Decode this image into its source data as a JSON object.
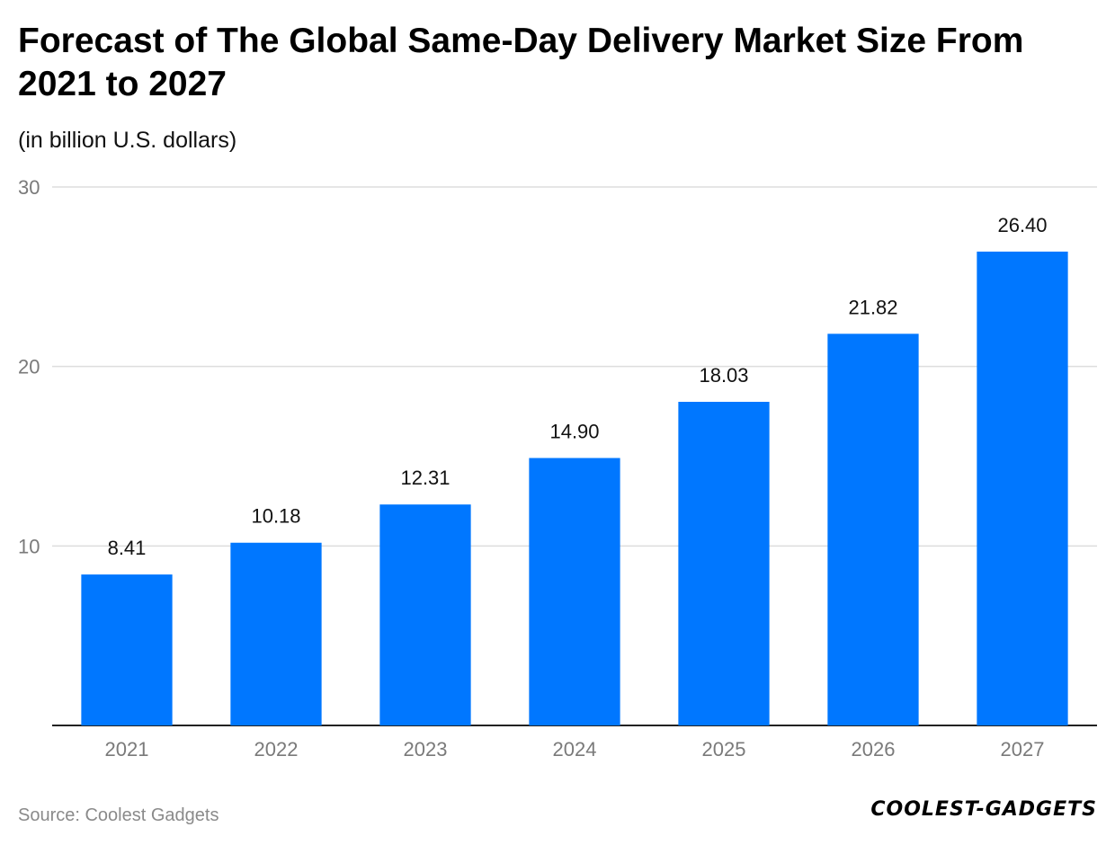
{
  "chart_data": {
    "type": "bar",
    "title": "Forecast of The Global Same-Day Delivery Market Size From 2021 to 2027",
    "subtitle": "(in billion U.S. dollars)",
    "categories": [
      "2021",
      "2022",
      "2023",
      "2024",
      "2025",
      "2026",
      "2027"
    ],
    "values": [
      8.41,
      10.18,
      12.31,
      14.9,
      18.03,
      21.82,
      26.4
    ],
    "value_labels": [
      "8.41",
      "10.18",
      "12.31",
      "14.90",
      "18.03",
      "21.82",
      "26.40"
    ],
    "xlabel": "",
    "ylabel": "",
    "ylim": [
      0,
      30
    ],
    "yticks": [
      10,
      20,
      30
    ],
    "ytick_labels": [
      "10",
      "20",
      "30"
    ],
    "grid": true,
    "bar_color": "#0077ff",
    "grid_color": "#dddddd",
    "axis_color": "#222222"
  },
  "footer": {
    "source": "Source: Coolest Gadgets",
    "logo_text": "COOLEST-GADGETS"
  }
}
